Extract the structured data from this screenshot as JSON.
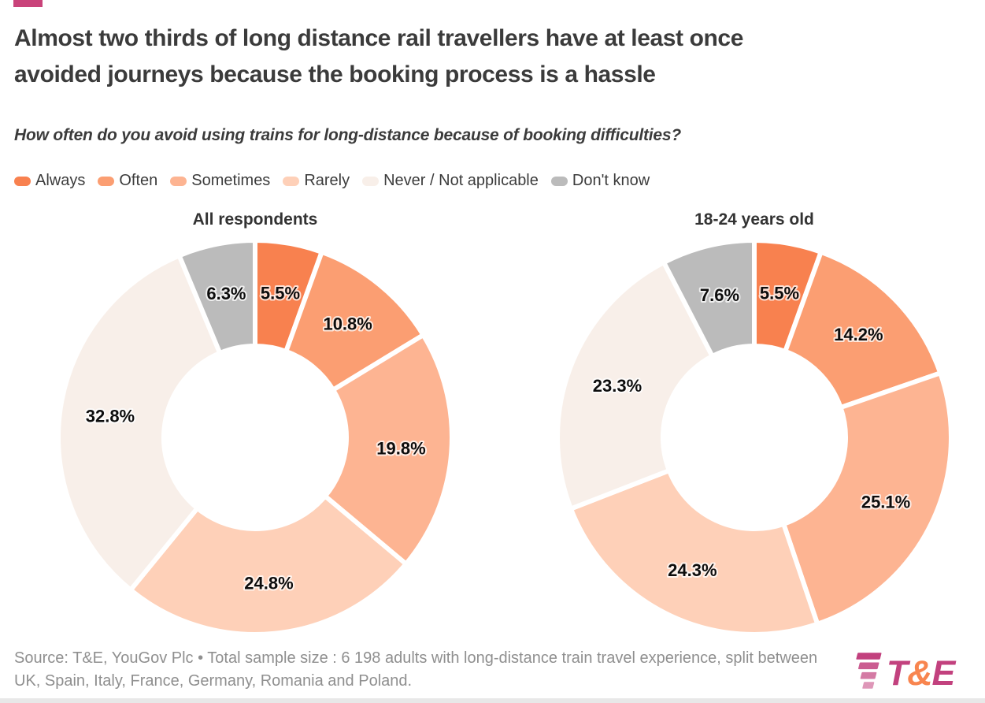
{
  "header": {
    "title": "Almost two thirds of long distance rail travellers have at least once avoided journeys because the booking process is a hassle",
    "title_lines": [
      "Almost two thirds of long distance rail travellers have at least once",
      "avoided journeys because the booking process is a hassle"
    ],
    "subtitle": "How often do you avoid using trains for long-distance because of booking difficulties?"
  },
  "legend": [
    {
      "label": "Always",
      "color": "#f8814f"
    },
    {
      "label": "Often",
      "color": "#fb9e72"
    },
    {
      "label": "Sometimes",
      "color": "#fdb492"
    },
    {
      "label": "Rarely",
      "color": "#fed0b8"
    },
    {
      "label": "Never / Not applicable",
      "color": "#f8efe9"
    },
    {
      "label": "Don't know",
      "color": "#bbbbbb"
    }
  ],
  "chart_data": [
    {
      "type": "pie",
      "variant": "donut",
      "title": "All respondents",
      "categories": [
        "Always",
        "Often",
        "Sometimes",
        "Rarely",
        "Never / Not applicable",
        "Don't know"
      ],
      "values": [
        5.5,
        10.8,
        19.8,
        24.8,
        32.8,
        6.3
      ],
      "labels": [
        "5.5%",
        "10.8%",
        "19.8%",
        "24.8%",
        "32.8%",
        "6.3%"
      ],
      "start_angle_deg": 0,
      "direction": "clockwise",
      "legend_position": "top"
    },
    {
      "type": "pie",
      "variant": "donut",
      "title": "18-24 years old",
      "categories": [
        "Always",
        "Often",
        "Sometimes",
        "Rarely",
        "Never / Not applicable",
        "Don't know"
      ],
      "values": [
        5.5,
        14.2,
        25.1,
        24.3,
        23.3,
        7.6
      ],
      "labels": [
        "5.5%",
        "14.2%",
        "25.1%",
        "24.3%",
        "23.3%",
        "7.6%"
      ],
      "start_angle_deg": 0,
      "direction": "clockwise",
      "legend_position": "top"
    }
  ],
  "footer": {
    "source": "Source: T&E, YouGov Plc • Total sample size : 6 198 adults with long-distance train travel experience, split between UK, Spain, Italy, France, Germany, Romania and Poland.",
    "logo_t": "T",
    "logo_amp": "&",
    "logo_e": "E"
  },
  "colors": {
    "brand_bar": "#c9437a",
    "logo_magenta": "#c2417e",
    "logo_orange": "#f8854f",
    "window_edge": "#e8e8e8"
  }
}
